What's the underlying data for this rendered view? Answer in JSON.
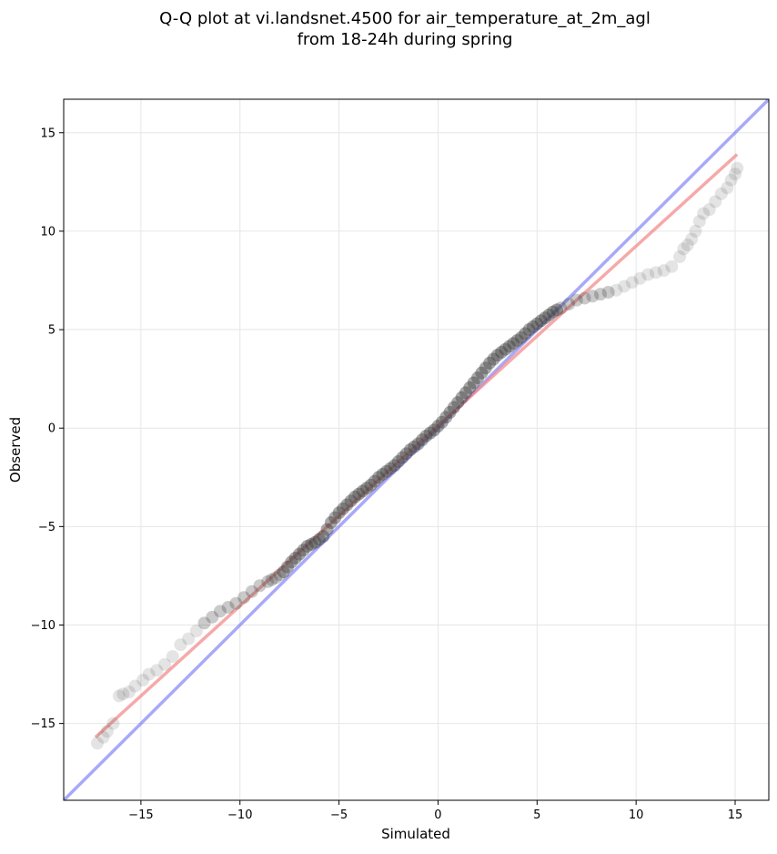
{
  "chart_data": {
    "type": "scatter",
    "title_line1": "Q-Q plot at vi.landsnet.4500 for air_temperature_at_2m_agl",
    "title_line2": "from 18-24h during spring",
    "xlabel": "Simulated",
    "ylabel": "Observed",
    "xlim": [
      -18.9,
      16.7
    ],
    "ylim": [
      -18.9,
      16.7
    ],
    "xticks": [
      -15,
      -10,
      -5,
      0,
      5,
      10,
      15
    ],
    "yticks": [
      -15,
      -10,
      -5,
      0,
      5,
      10,
      15
    ],
    "xtick_labels": [
      "−15",
      "−10",
      "−5",
      "0",
      "5",
      "10",
      "15"
    ],
    "ytick_labels": [
      "−15",
      "−10",
      "−5",
      "0",
      "5",
      "10",
      "15"
    ],
    "grid": true,
    "colors": {
      "points": "#404040",
      "identity_line": "#6f6ff5",
      "fit_line": "#f28585",
      "grid": "#e6e6e6"
    },
    "identity_line": {
      "x": [
        -18.9,
        16.7
      ],
      "y": [
        -18.9,
        16.7
      ]
    },
    "fit_line": {
      "x": [
        -17.3,
        15.1
      ],
      "y": [
        -15.7,
        13.9
      ]
    },
    "quantiles": {
      "x": [
        -17.2,
        -16.9,
        -16.7,
        -16.4,
        -16.1,
        -15.9,
        -15.6,
        -15.3,
        -14.9,
        -14.6,
        -14.2,
        -13.8,
        -13.4,
        -13.0,
        -12.6,
        -12.2,
        -11.8,
        -11.4,
        -11.0,
        -10.6,
        -10.2,
        -9.8,
        -9.4,
        -9.0,
        -8.6,
        -8.2,
        -7.8,
        -7.4,
        -7.0,
        -6.6,
        -6.2,
        -5.8,
        -5.4,
        -5.0,
        -4.6,
        -4.2,
        -3.8,
        -3.4,
        -3.0,
        -2.6,
        -2.2,
        -1.8,
        -1.4,
        -1.0,
        -0.6,
        -0.2,
        0.2,
        0.6,
        1.0,
        1.4,
        1.8,
        2.2,
        2.6,
        3.0,
        3.4,
        3.8,
        4.2,
        4.6,
        5.0,
        5.4,
        5.8,
        6.2,
        6.6,
        7.0,
        7.4,
        7.8,
        8.2,
        8.6,
        9.0,
        9.4,
        9.8,
        10.2,
        10.6,
        11.0,
        11.4,
        11.8,
        12.2,
        12.4,
        12.6,
        12.8,
        13.0,
        13.2,
        13.4,
        13.7,
        14.0,
        14.3,
        14.6,
        14.8,
        15.0,
        15.1
      ],
      "y": [
        -16.0,
        -15.7,
        -15.4,
        -15.0,
        -13.6,
        -13.5,
        -13.4,
        -13.1,
        -12.8,
        -12.5,
        -12.3,
        -12.0,
        -11.6,
        -11.0,
        -10.7,
        -10.3,
        -9.9,
        -9.6,
        -9.3,
        -9.1,
        -8.9,
        -8.6,
        -8.3,
        -8.0,
        -7.8,
        -7.6,
        -7.3,
        -6.8,
        -6.4,
        -6.0,
        -5.8,
        -5.5,
        -4.8,
        -4.3,
        -3.9,
        -3.5,
        -3.2,
        -2.9,
        -2.5,
        -2.2,
        -1.9,
        -1.5,
        -1.1,
        -0.8,
        -0.4,
        -0.1,
        0.3,
        0.8,
        1.3,
        1.8,
        2.3,
        2.8,
        3.3,
        3.7,
        4.0,
        4.3,
        4.6,
        5.0,
        5.3,
        5.6,
        5.9,
        6.1,
        6.3,
        6.5,
        6.6,
        6.7,
        6.8,
        6.9,
        7.0,
        7.2,
        7.4,
        7.6,
        7.8,
        7.9,
        8.0,
        8.2,
        8.7,
        9.1,
        9.3,
        9.6,
        10.0,
        10.5,
        10.9,
        11.1,
        11.5,
        11.9,
        12.2,
        12.6,
        12.9,
        13.2
      ]
    }
  }
}
